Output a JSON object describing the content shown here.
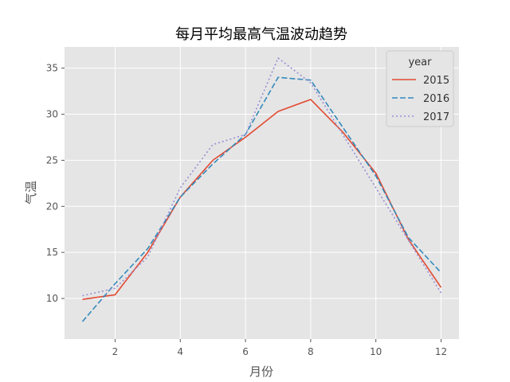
{
  "chart_data": {
    "type": "line",
    "title": "每月平均最高气温波动趋势",
    "xlabel": "月份",
    "ylabel": "气温",
    "x": [
      1,
      2,
      3,
      4,
      5,
      6,
      7,
      8,
      9,
      10,
      11,
      12
    ],
    "xticks": [
      2,
      4,
      6,
      8,
      10,
      12
    ],
    "yticks": [
      10,
      15,
      20,
      25,
      30,
      35
    ],
    "xlim": [
      0.45,
      12.55
    ],
    "ylim": [
      5.6,
      37.3
    ],
    "grid": true,
    "legend": {
      "title": "year",
      "position": "top-right"
    },
    "series": [
      {
        "name": "2015",
        "color": "#E24A33",
        "dash": "solid",
        "values": [
          9.9,
          10.4,
          15.0,
          21.0,
          25.0,
          27.5,
          30.3,
          31.6,
          28.0,
          23.6,
          16.4,
          11.2
        ]
      },
      {
        "name": "2016",
        "color": "#348ABD",
        "dash": "dashed",
        "values": [
          7.5,
          11.6,
          15.4,
          21.0,
          24.6,
          27.8,
          34.0,
          33.7,
          28.5,
          23.3,
          16.6,
          12.8
        ]
      },
      {
        "name": "2017",
        "color": "#988ED5",
        "dash": "dotted",
        "values": [
          10.3,
          11.1,
          14.5,
          22.0,
          26.7,
          27.8,
          36.1,
          33.4,
          27.7,
          22.0,
          16.3,
          10.6
        ]
      }
    ],
    "colors": {
      "background": "#E5E5E5",
      "grid": "#FFFFFF",
      "tick": "#555555"
    }
  }
}
